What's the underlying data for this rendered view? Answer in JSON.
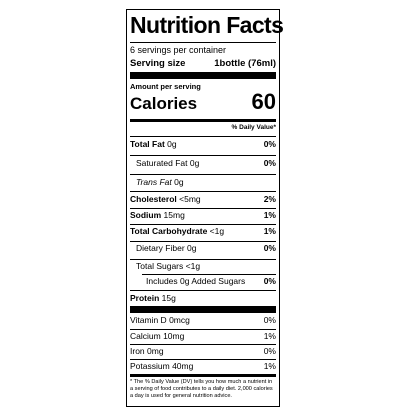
{
  "label": {
    "title": "Nutrition Facts",
    "servings_per_container": "6 servings per container",
    "serving_size_label": "Serving size",
    "serving_size_value": "1bottle (76ml)",
    "amount_per_serving": "Amount per serving",
    "calories_label": "Calories",
    "calories_value": "60",
    "daily_value_header": "% Daily Value*",
    "nutrients": [
      {
        "name": "Total Fat",
        "amount": "0g",
        "dv": "0%"
      },
      {
        "name": "Saturated Fat",
        "amount": "0g",
        "dv": "0%"
      },
      {
        "name": "Trans Fat",
        "amount": "0g",
        "dv": ""
      },
      {
        "name": "Cholesterol",
        "amount": "<5mg",
        "dv": "2%"
      },
      {
        "name": "Sodium",
        "amount": "15mg",
        "dv": "1%"
      },
      {
        "name": "Total Carbohydrate",
        "amount": "<1g",
        "dv": "1%"
      },
      {
        "name": "Dietary Fiber",
        "amount": "0g",
        "dv": "0%"
      },
      {
        "name": "Total Sugars",
        "amount": "<1g",
        "dv": ""
      },
      {
        "name": "Includes 0g Added Sugars",
        "amount": "",
        "dv": "0%"
      },
      {
        "name": "Protein",
        "amount": "15g",
        "dv": ""
      }
    ],
    "vitamins": [
      {
        "name": "Vitamin D",
        "amount": "0mcg",
        "dv": "0%"
      },
      {
        "name": "Calcium",
        "amount": "10mg",
        "dv": "1%"
      },
      {
        "name": "Iron",
        "amount": "0mg",
        "dv": "0%"
      },
      {
        "name": "Potassium",
        "amount": "40mg",
        "dv": "1%"
      }
    ],
    "footnote": "* The % Daily Value (DV) tells you how much a nutrient in a serving of food contributes to a daily diet. 2,000 calories a day is used for general nutrition advice."
  }
}
